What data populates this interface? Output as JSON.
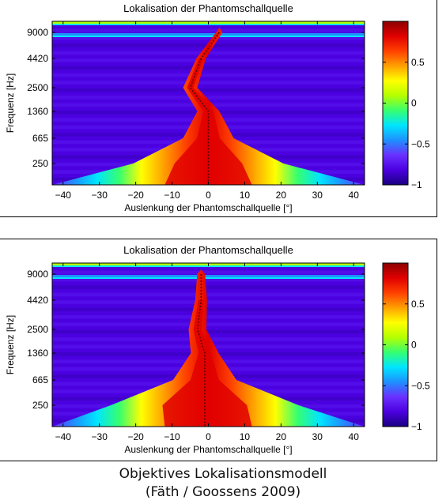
{
  "chart_data": [
    {
      "type": "heatmap",
      "title": "Lokalisation der Phantomschallquelle",
      "xlabel": "Auslenkung der Phantomschallquelle [°]",
      "ylabel": "Frequenz [Hz]",
      "xlim": [
        -43,
        43
      ],
      "x_ticks": [
        -40,
        -30,
        -20,
        -10,
        0,
        10,
        20,
        30,
        40
      ],
      "y_ticks": [
        "9000",
        "4420",
        "2500",
        "1360",
        "665",
        "250"
      ],
      "colorbar_ticks": [
        "0.5",
        "0",
        "-0.5",
        "-1"
      ],
      "colorbar_range": [
        -1,
        1
      ],
      "colormap": [
        "#1a0080",
        "#4b00e0",
        "#6a30ff",
        "#1e90ff",
        "#00e5ff",
        "#35ff70",
        "#b4ff00",
        "#ffff00",
        "#ffa000",
        "#ff4000",
        "#e00000",
        "#8b0000"
      ],
      "ridge": [
        {
          "freq": "9000",
          "x": 3
        },
        {
          "freq": "4420",
          "x": -2
        },
        {
          "freq": "2500",
          "x": -5
        },
        {
          "freq": "1360",
          "x": 0
        },
        {
          "freq": "665",
          "x": 0
        },
        {
          "freq": "250",
          "x": 0
        }
      ]
    },
    {
      "type": "heatmap",
      "title": "Lokalisation der Phantomschallquelle",
      "xlabel": "Auslenkung der Phantomschallquelle [°]",
      "ylabel": "Frequenz [Hz]",
      "xlim": [
        -43,
        43
      ],
      "x_ticks": [
        -40,
        -30,
        -20,
        -10,
        0,
        10,
        20,
        30,
        40
      ],
      "y_ticks": [
        "9000",
        "4420",
        "2500",
        "1360",
        "665",
        "250"
      ],
      "colorbar_ticks": [
        "0.5",
        "0",
        "-0.5",
        "-1"
      ],
      "colorbar_range": [
        -1,
        1
      ],
      "colormap": [
        "#1a0080",
        "#4b00e0",
        "#6a30ff",
        "#1e90ff",
        "#00e5ff",
        "#35ff70",
        "#b4ff00",
        "#ffff00",
        "#ffa000",
        "#ff4000",
        "#e00000",
        "#8b0000"
      ],
      "ridge": [
        {
          "freq": "9000",
          "x": -2
        },
        {
          "freq": "4420",
          "x": -2
        },
        {
          "freq": "2500",
          "x": -3
        },
        {
          "freq": "1360",
          "x": -1
        },
        {
          "freq": "665",
          "x": -1
        },
        {
          "freq": "250",
          "x": -1
        }
      ]
    }
  ],
  "caption": {
    "line1": "Objektives Lokalisationsmodell",
    "line2": "(Fäth / Goossens 2009)"
  }
}
